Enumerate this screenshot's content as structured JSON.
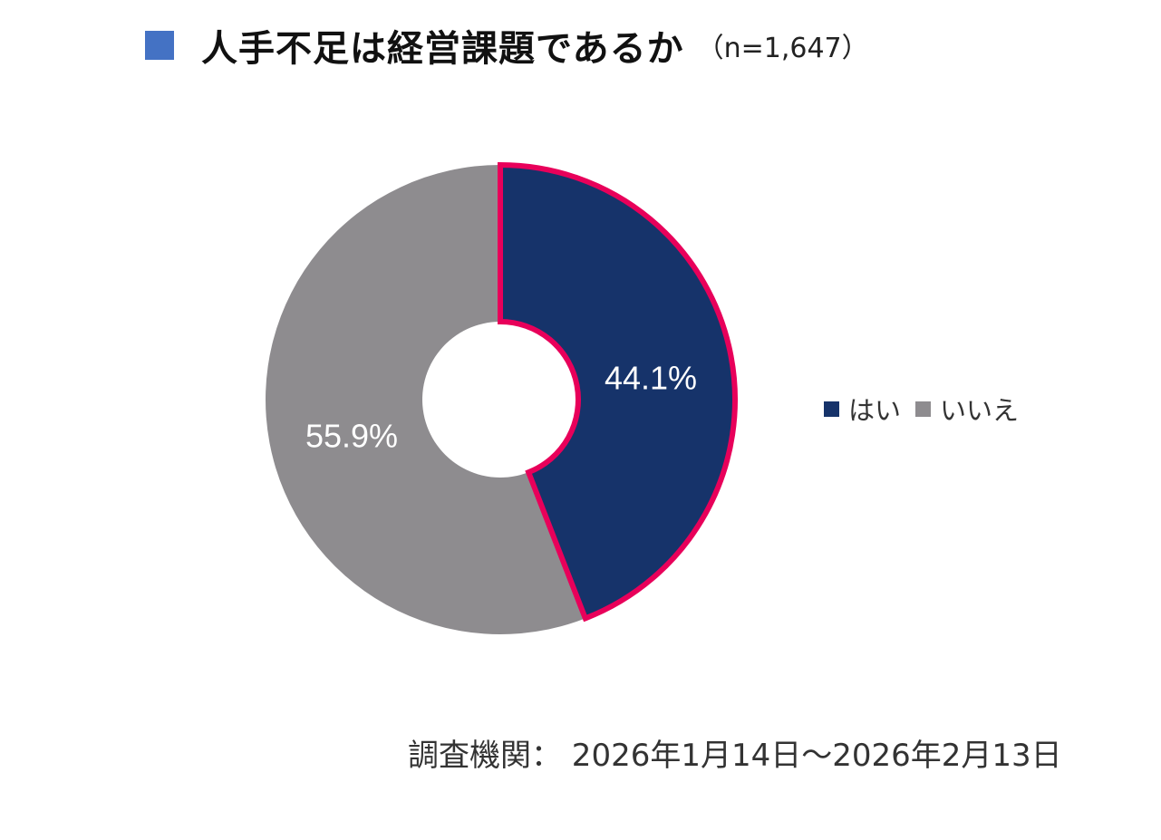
{
  "title": {
    "main": "人手不足は経営課題であるか",
    "sub": "（n=1,647）",
    "marker_color": "#4472C4"
  },
  "footer": {
    "text": "調査機関： 2026年1月14日～2026年2月13日"
  },
  "chart_data": {
    "type": "pie",
    "style": "donut",
    "title": "人手不足は経営課題であるか",
    "categories": [
      "はい",
      "いいえ"
    ],
    "values": [
      44.1,
      55.9
    ],
    "labels": [
      "44.1%",
      "55.9%"
    ],
    "colors": [
      "#16336A",
      "#8E8C8F"
    ],
    "highlight_color": "#E8005A",
    "highlighted_slice": "はい",
    "legend_position": "right"
  }
}
